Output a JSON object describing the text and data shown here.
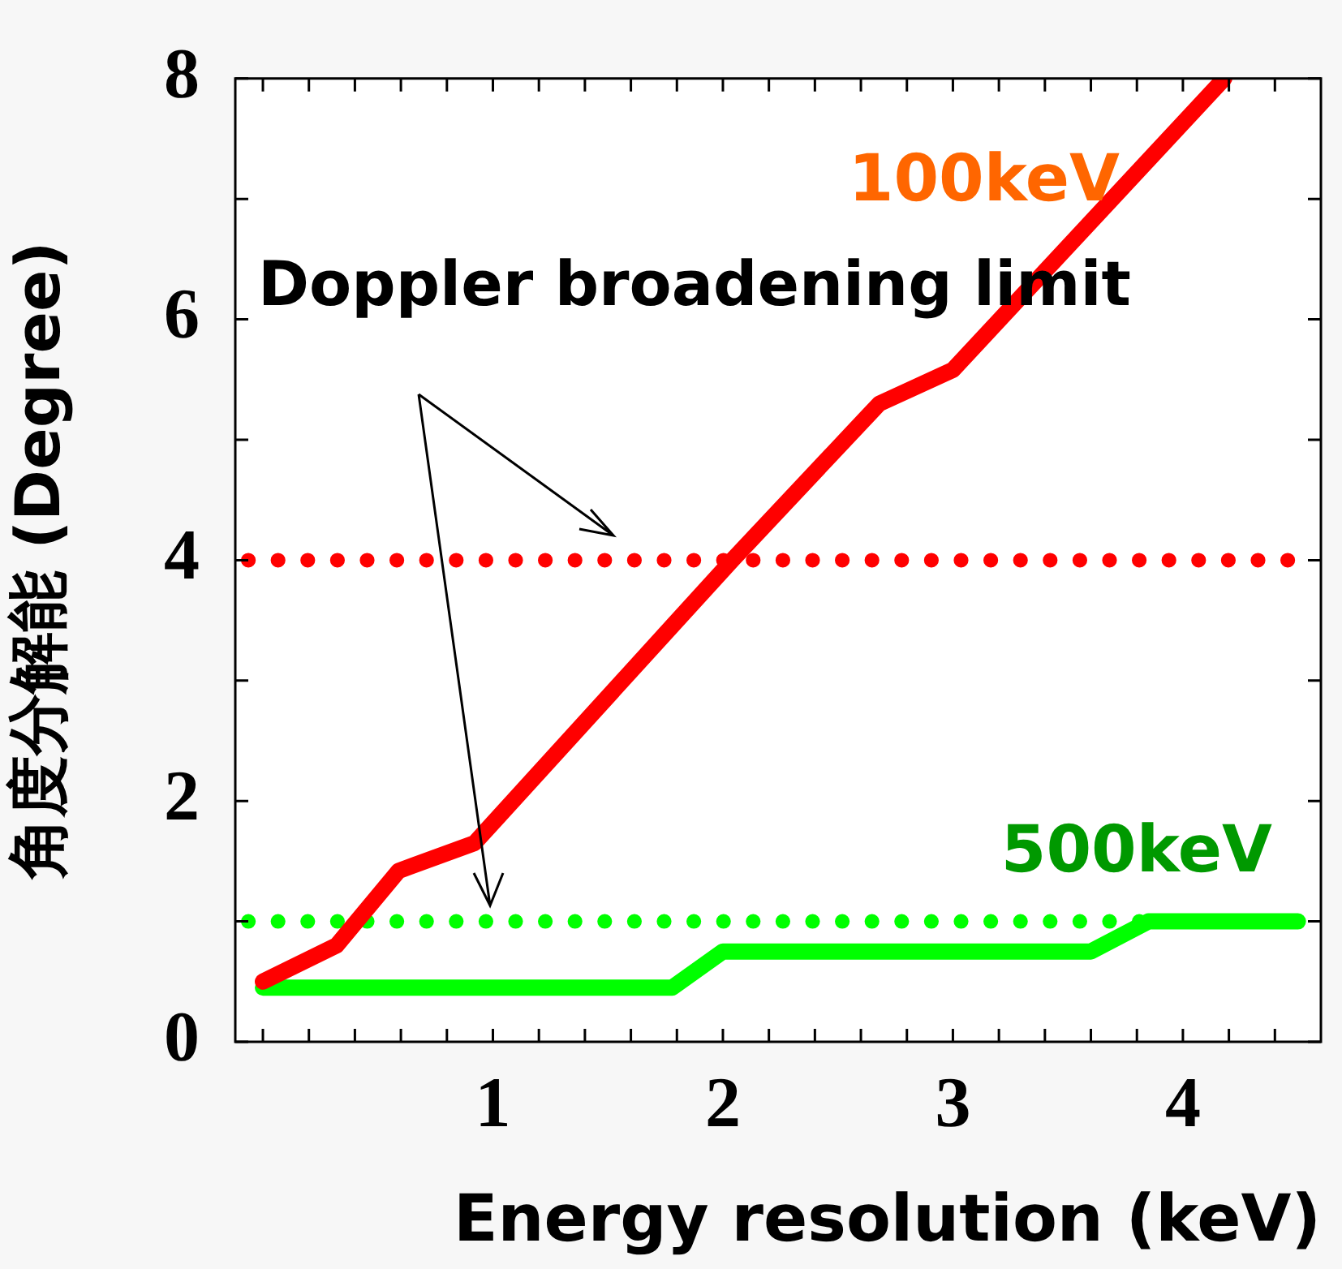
{
  "chart_data": {
    "type": "line",
    "xlabel": "Energy resolution (keV)",
    "ylabel": "角度分解能 (Degree)",
    "annotations": [
      "Doppler broadening limit"
    ],
    "xlim": [
      -0.12,
      4.6
    ],
    "xticks": [
      {
        "value": 0,
        "label": null
      },
      {
        "value": 0.2,
        "label": null
      },
      {
        "value": 0.4,
        "label": null
      },
      {
        "value": 0.6,
        "label": null
      },
      {
        "value": 0.8,
        "label": null
      },
      1,
      {
        "value": 1.2,
        "label": null
      },
      {
        "value": 1.4,
        "label": null
      },
      {
        "value": 1.6,
        "label": null
      },
      {
        "value": 1.8,
        "label": null
      },
      2,
      {
        "value": 2.2,
        "label": null
      },
      {
        "value": 2.4,
        "label": null
      },
      {
        "value": 2.6,
        "label": null
      },
      {
        "value": 2.8,
        "label": null
      },
      3,
      {
        "value": 3.2,
        "label": null
      },
      {
        "value": 3.4,
        "label": null
      },
      {
        "value": 3.6,
        "label": null
      },
      {
        "value": 3.8,
        "label": null
      },
      4,
      {
        "value": 4.2,
        "label": null
      },
      {
        "value": 4.4,
        "label": null
      }
    ],
    "ylim": [
      0,
      8
    ],
    "yticks": [
      0,
      {
        "value": 1,
        "label": null
      },
      2,
      {
        "value": 3,
        "label": null
      },
      4,
      {
        "value": 5,
        "label": null
      },
      6,
      {
        "value": 7,
        "label": null
      },
      8
    ],
    "series": [
      {
        "name": "100keV",
        "color": "#ff0000",
        "x": [
          0,
          0.32,
          0.59,
          0.92,
          2.04,
          2.68,
          3.0,
          4.18
        ],
        "values": [
          0.5,
          0.8,
          1.42,
          1.65,
          4.0,
          5.3,
          5.58,
          8.0
        ]
      },
      {
        "name": "500keV",
        "color": "#00ff00",
        "x": [
          0,
          1.78,
          2.0,
          3.6,
          3.85,
          4.5
        ],
        "values": [
          0.45,
          0.45,
          0.75,
          0.75,
          1.0,
          1.0
        ]
      }
    ],
    "ref_lines": [
      {
        "axis": "y",
        "value": 4,
        "color": "#ff0000",
        "line_style": "dotted"
      },
      {
        "axis": "y",
        "value": 1,
        "color": "#00ff00",
        "line_style": "dotted"
      }
    ],
    "grid": false,
    "legend": false,
    "marker": "none",
    "line_style": "solid"
  }
}
